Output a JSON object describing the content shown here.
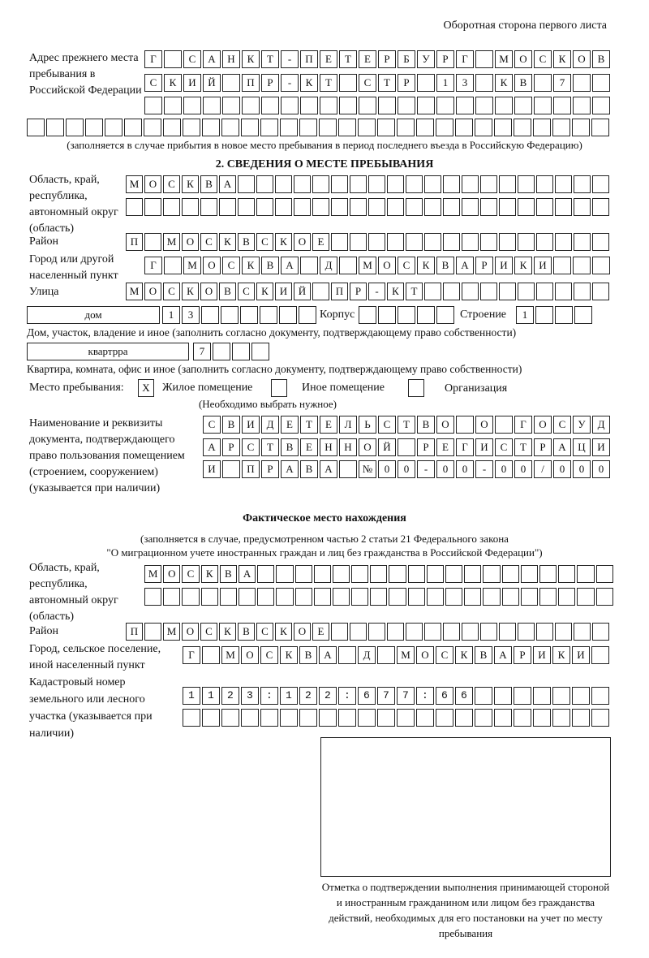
{
  "header": "Оборотная сторона первого листа",
  "previous_address": {
    "label": "Адрес прежнего места пребывания в Российской Федерации",
    "rows": [
      "Г САНКТ-ПЕТЕРБУРГ МОСКОВ",
      "СКИЙ ПР-КТ СТР 13 КВ 7",
      "",
      ""
    ],
    "note": "(заполняется в случае прибытия в новое место пребывания в период последнего въезда в Российскую Федерацию)"
  },
  "section2": {
    "title": "2. СВЕДЕНИЯ О МЕСТЕ ПРЕБЫВАНИЯ",
    "region_label": "Область, край, республика, автономный округ (область)",
    "region_rows": [
      "МОСКВА",
      ""
    ],
    "district_label": "Район",
    "district": "П МОСКВСКОЕ",
    "city_label": "Город или другой населенный пункт",
    "city": "Г МОСКВА Д МОСКВАРИКИ",
    "street_label": "Улица",
    "street": "МОСКОВСКИЙ ПР-КТ",
    "house_type": "дом",
    "house_number": "13",
    "korpus_label": "Корпус",
    "korpus": "",
    "building_label": "Строение",
    "building": "1",
    "house_note": "Дом, участок, владение и иное (заполнить согласно документу, подтверждающему право собственности)",
    "apartment_type": "квартрра",
    "apartment_number": "7",
    "apartment_note": "Квартира, комната, офис и иное (заполнить согласно документу, подтверждающему право собственности)",
    "stay_place_label": "Место пребывания:",
    "stay_options": [
      {
        "label": "Жилое помещение",
        "mark": "X"
      },
      {
        "label": "Иное помещение",
        "mark": ""
      },
      {
        "label": "Организация",
        "mark": ""
      }
    ],
    "stay_note": "(Необходимо выбрать нужное)",
    "document_label": "Наименование и реквизиты документа, подтверждающего право пользования помещением (строением, сооружением) (указывается при наличии)",
    "document_rows": [
      "СВИДЕТЕЛЬСТВО О ГОСУД",
      "АРСТВЕННОЙ РЕГИСТРАЦИ",
      "И ПРАВА №00-00-00/000"
    ]
  },
  "actual_location": {
    "title": "Фактическое место нахождения",
    "note_line1": "(заполняется в случае, предусмотренном частью 2 статьи 21 Федерального закона",
    "note_line2": "\"О миграционном учете иностранных граждан и лиц без гражданства в Российской Федерации\")",
    "region_label": "Область, край, республика, автономный округ (область)",
    "region_rows": [
      "МОСКВА",
      ""
    ],
    "district_label": "Район",
    "district": "П МОСКВСКОЕ",
    "city_label": "Город, сельское поселение, иной населенный пункт",
    "city": "Г МОСКВА Д МОСКВАРИКИ",
    "cadastral_label": "Кадастровый номер земельного или лесного участка (указывается при наличии)",
    "cadastral_rows": [
      "1123:122:677:66",
      ""
    ]
  },
  "confirmation_caption": "Отметка о подтверждении выполнения принимающей стороной и иностранным гражданином или лицом без гражданства действий, необходимых для его постановки на учет по месту пребывания"
}
